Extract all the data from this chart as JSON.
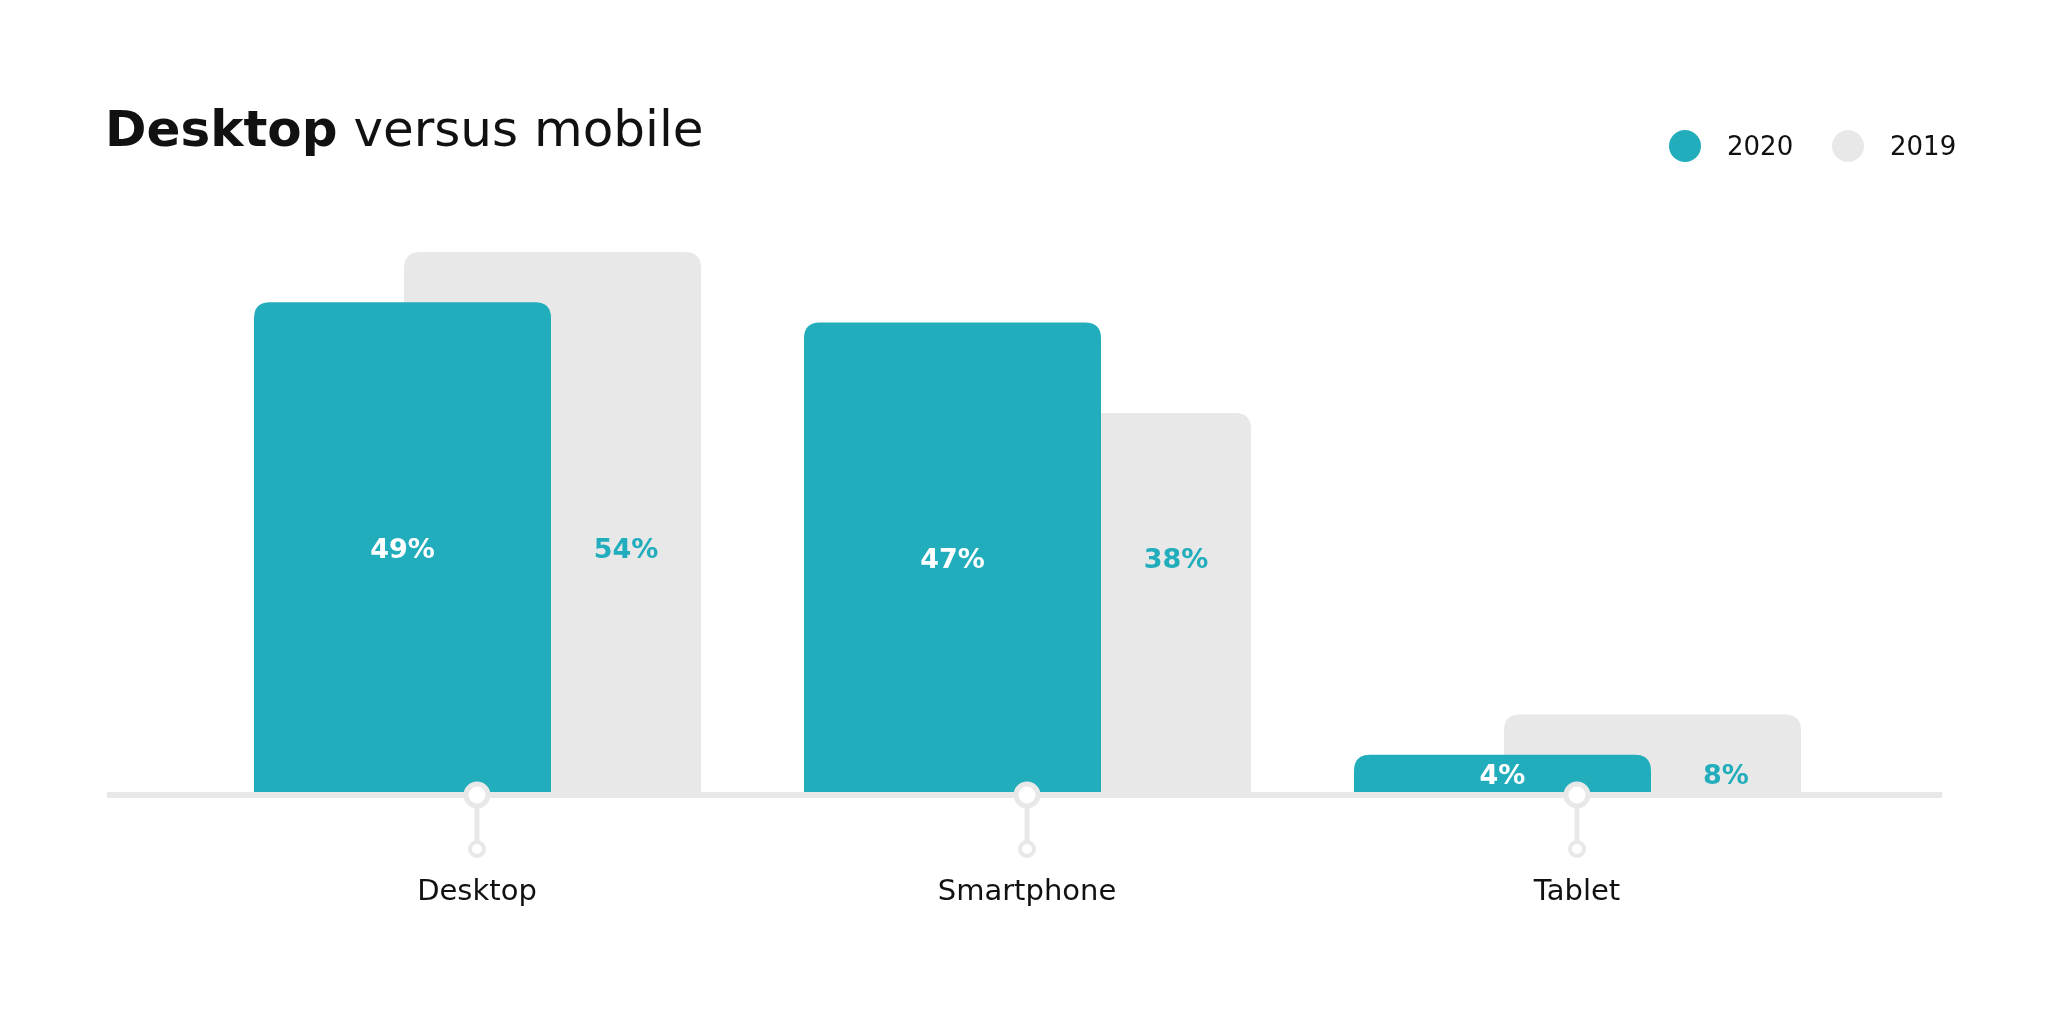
{
  "chart_data": {
    "type": "bar",
    "title": "Desktop versus mobile",
    "categories": [
      "Desktop",
      "Smartphone",
      "Tablet"
    ],
    "series": [
      {
        "name": "2020",
        "color": "#21adbc",
        "values": [
          49,
          47,
          4
        ],
        "value_labels": [
          "49%",
          "47%",
          "4%"
        ]
      },
      {
        "name": "2019",
        "color": "#e8e8e8",
        "values": [
          54,
          38,
          8
        ],
        "value_labels": [
          "54%",
          "38%",
          "8%"
        ]
      }
    ],
    "legend": "top right"
  }
}
